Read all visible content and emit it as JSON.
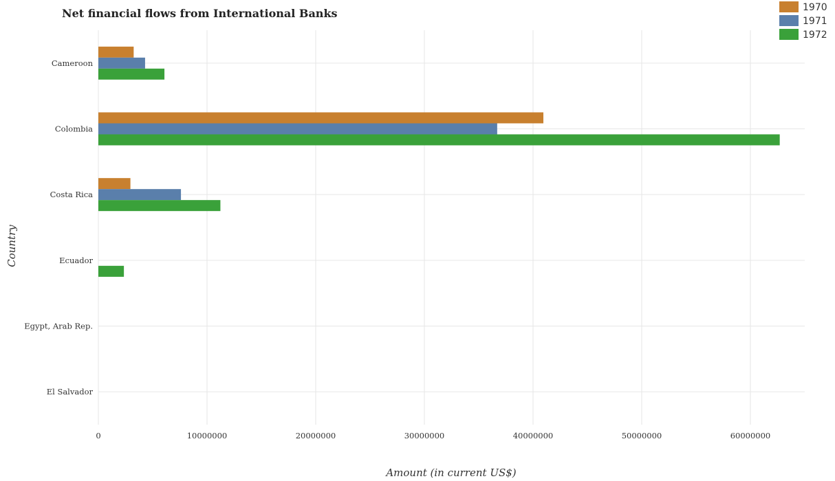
{
  "chart_data": {
    "type": "bar",
    "orientation": "horizontal",
    "title": "Net financial flows from International Banks",
    "xlabel": "Amount (in current US$)",
    "ylabel": "Country",
    "categories": [
      "Cameroon",
      "Colombia",
      "Costa Rica",
      "Ecuador",
      "Egypt, Arab Rep.",
      "El Salvador"
    ],
    "series": [
      {
        "name": "1970",
        "color": "#c8802f",
        "values": [
          3250000,
          40950000,
          2950000,
          0,
          0,
          0
        ]
      },
      {
        "name": "1971",
        "color": "#5a7fab",
        "values": [
          4300000,
          36700000,
          7600000,
          0,
          0,
          0
        ]
      },
      {
        "name": "1972",
        "color": "#3aa13a",
        "values": [
          6080000,
          62700000,
          11230000,
          2350000,
          0,
          0
        ]
      }
    ],
    "xlim": [
      0,
      65000000
    ],
    "xticks": [
      0,
      10000000,
      20000000,
      30000000,
      40000000,
      50000000,
      60000000
    ],
    "xtick_labels": [
      "0",
      "10000000",
      "20000000",
      "30000000",
      "40000000",
      "50000000",
      "60000000"
    ],
    "grid": true,
    "legend_position": "top-right"
  }
}
